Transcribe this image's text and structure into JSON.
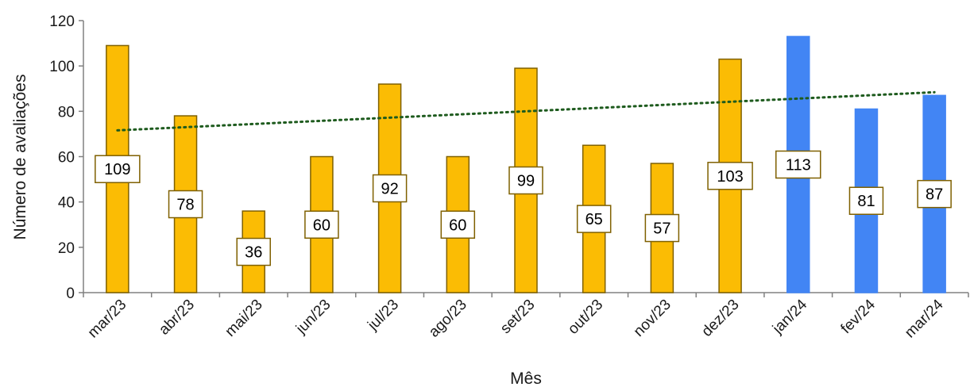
{
  "chart_data": {
    "type": "bar",
    "xlabel": "Mês",
    "ylabel": "Número de avaliações",
    "ylim": [
      0,
      120
    ],
    "yticks": [
      0,
      20,
      40,
      60,
      80,
      100,
      120
    ],
    "grid": false,
    "legend": "none",
    "categories": [
      "mar/23",
      "abr/23",
      "mai/23",
      "jun/23",
      "jul/23",
      "ago/23",
      "set/23",
      "out/23",
      "nov/23",
      "dez/23",
      "jan/24",
      "fev/24",
      "mar/24"
    ],
    "values": [
      109,
      78,
      36,
      60,
      92,
      60,
      99,
      65,
      57,
      103,
      113,
      81,
      87
    ],
    "bar_colors": [
      "#FBBC04",
      "#FBBC04",
      "#FBBC04",
      "#FBBC04",
      "#FBBC04",
      "#FBBC04",
      "#FBBC04",
      "#FBBC04",
      "#FBBC04",
      "#FBBC04",
      "#4285F4",
      "#4285F4",
      "#4285F4"
    ],
    "bar_edge_colors": [
      "#7F6000",
      "#7F6000",
      "#7F6000",
      "#7F6000",
      "#7F6000",
      "#7F6000",
      "#7F6000",
      "#7F6000",
      "#7F6000",
      "#7F6000",
      "#4285F4",
      "#4285F4",
      "#4285F4"
    ],
    "trendline": {
      "type": "linear",
      "style": "dotted",
      "color": "#1E5B1E"
    },
    "label_border_color": "#7F6000"
  }
}
